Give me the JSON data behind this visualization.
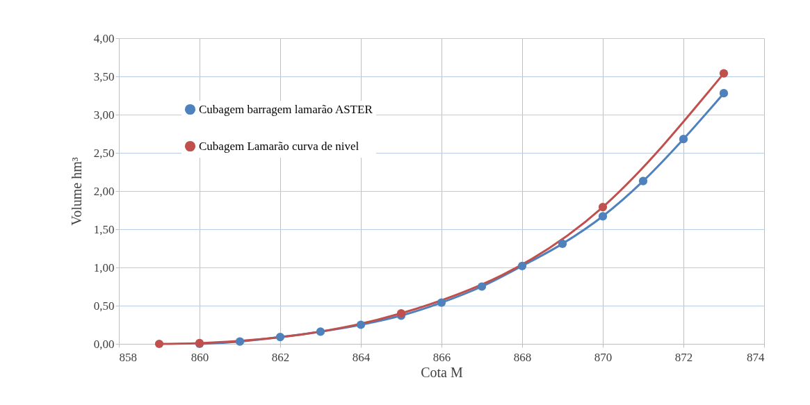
{
  "chart_data": {
    "type": "line",
    "xlabel": "Cota M",
    "ylabel": "Volume hm³",
    "series": [
      {
        "name": "Cubagem barragem lamarão ASTER",
        "color": "#4f81bd",
        "x": [
          860,
          861,
          862,
          863,
          864,
          865,
          866,
          867,
          868,
          869,
          870,
          871,
          872,
          873
        ],
        "values": [
          0.0,
          0.03,
          0.09,
          0.16,
          0.25,
          0.37,
          0.54,
          0.75,
          1.02,
          1.31,
          1.67,
          2.13,
          2.68,
          3.28
        ]
      },
      {
        "name": "Cubagem Lamarão curva de nivel",
        "color": "#c0504d",
        "x": [
          859,
          860,
          865,
          870,
          873
        ],
        "values": [
          0.0,
          0.01,
          0.4,
          1.79,
          3.54
        ]
      }
    ],
    "xlim": [
      858,
      874
    ],
    "xticks": [
      858,
      860,
      862,
      864,
      866,
      868,
      870,
      872,
      874
    ],
    "ylim": [
      0,
      4
    ],
    "yticks": [
      {
        "value": 0,
        "label": "0,00"
      },
      {
        "value": 0.5,
        "label": "0,50"
      },
      {
        "value": 1,
        "label": "1,00"
      },
      {
        "value": 1.5,
        "label": "1,50"
      },
      {
        "value": 2,
        "label": "2,00"
      },
      {
        "value": 2.5,
        "label": "2,50"
      },
      {
        "value": 3,
        "label": "3,00"
      },
      {
        "value": 3.5,
        "label": "3,50"
      },
      {
        "value": 4,
        "label": "4,00"
      }
    ],
    "grid": true,
    "legend": "top left",
    "marker": "circle",
    "line_style": "solid"
  }
}
